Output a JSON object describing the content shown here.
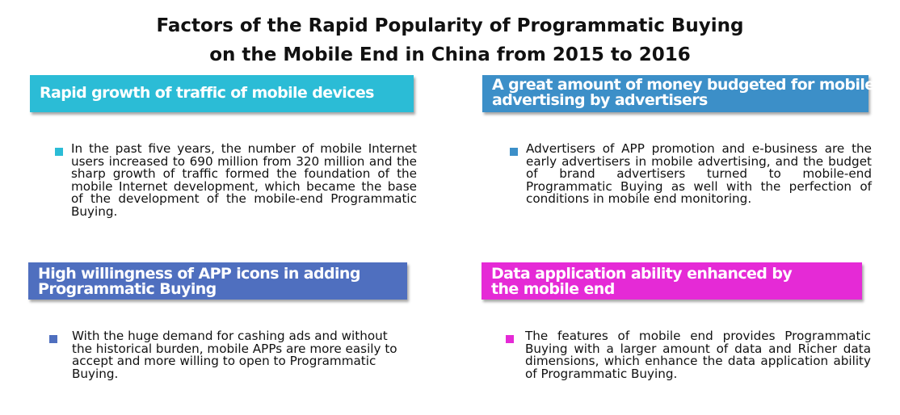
{
  "title": {
    "line1": "Factors of the Rapid Popularity of Programmatic Buying",
    "line2": "on the Mobile End in China from 2015 to 2016"
  },
  "panels": [
    {
      "heading_lines": [
        "Rapid growth of traffic of mobile devices"
      ],
      "color": "#2bbcd6",
      "bullet_color": "#2bbcd6",
      "body": "In the past five years, the number of mobile Internet users increased to 690 million from 320 million and the sharp growth of traffic formed the foundation of the mobile Internet development, which became the base of the development of the mobile-end Programmatic Buying."
    },
    {
      "heading_lines": [
        "A great amount of money budgeted for mobile",
        "advertising by advertisers"
      ],
      "color": "#3c8fc8",
      "bullet_color": "#3c8fc8",
      "body": "Advertisers of APP promotion and e-business are the early advertisers in mobile advertising, and the budget of brand advertisers turned to mobile-end Programmatic Buying as well with the perfection of conditions in mobile end monitoring."
    },
    {
      "heading_lines": [
        "High willingness of APP icons in adding",
        "Programmatic Buying"
      ],
      "color": "#4f6fbf",
      "bullet_color": "#4f6fbf",
      "body": "With the huge demand for cashing ads and without the historical burden, mobile APPs are more easily to accept and more willing to open to Programmatic Buying."
    },
    {
      "heading_lines": [
        "Data application ability enhanced by",
        "the mobile end"
      ],
      "color": "#e52ad6",
      "bullet_color": "#e52ad6",
      "body": "The features of mobile end provides Programmatic Buying with a larger amount of data and Richer data dimensions, which enhance the data application ability of Programmatic Buying."
    }
  ]
}
